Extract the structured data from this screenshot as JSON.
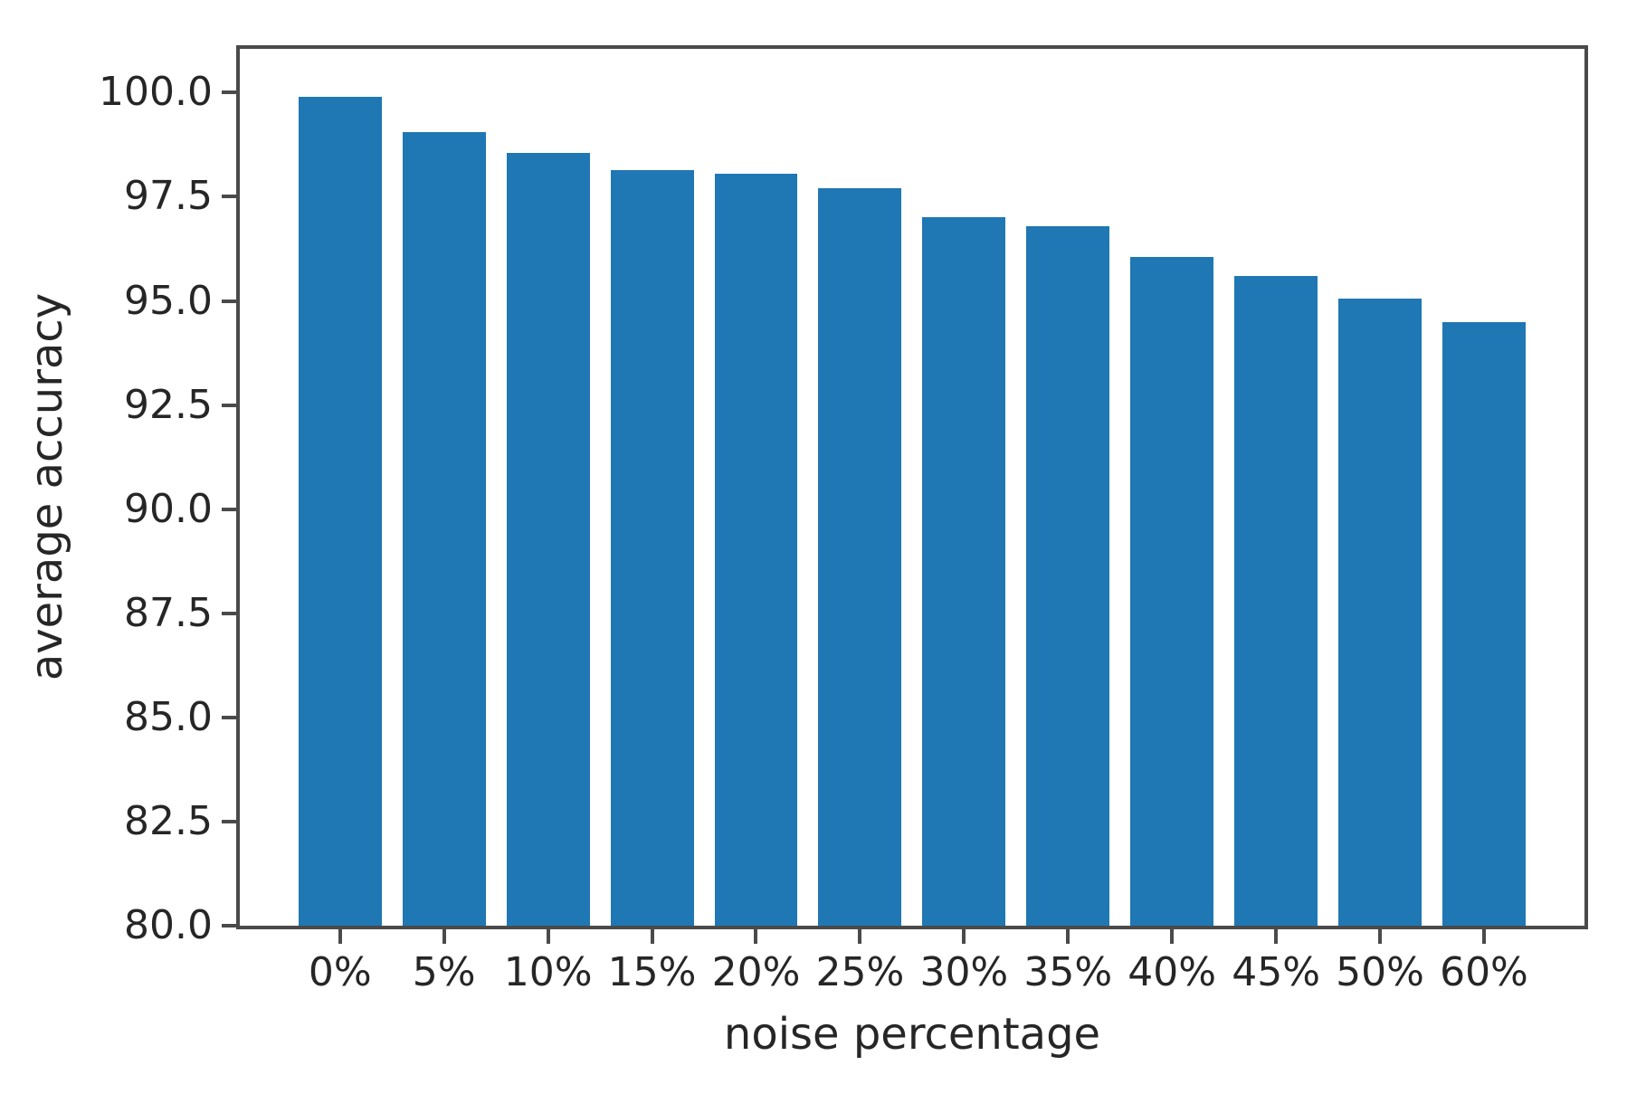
{
  "chart_data": {
    "type": "bar",
    "title": "",
    "xlabel": "noise percentage",
    "ylabel": "average accuracy",
    "categories": [
      "0%",
      "5%",
      "10%",
      "15%",
      "20%",
      "25%",
      "30%",
      "35%",
      "40%",
      "45%",
      "50%",
      "60%"
    ],
    "values": [
      99.9,
      99.05,
      98.55,
      98.15,
      98.05,
      97.7,
      97.0,
      96.8,
      96.05,
      95.6,
      95.05,
      94.5
    ],
    "ytick_labels": [
      "100.0",
      "97.5",
      "95.0",
      "92.5",
      "90.0",
      "87.5",
      "85.0",
      "82.5",
      "80.0"
    ],
    "ylim": [
      80.0,
      101.05
    ],
    "grid": false,
    "bar_color": "#1f77b4",
    "axis_color": "#4a4a4a",
    "text_color": "#262626"
  }
}
